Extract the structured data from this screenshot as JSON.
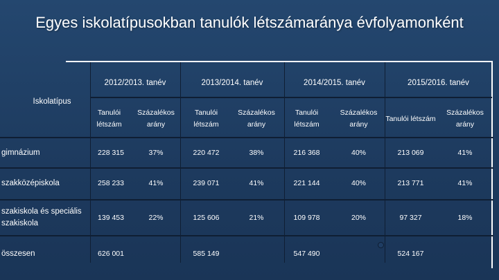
{
  "title": "Egyes iskolatípusokban tanulók létszámaránya évfolyamonként",
  "row_header": "Iskolatípus",
  "years": [
    "2012/2013. tanév",
    "2013/2014. tanév",
    "2014/2015. tanév",
    "2015/2016. tanév"
  ],
  "subheaders": {
    "count": "Tanulói létszám",
    "percent": "Százalékos arány"
  },
  "rows": [
    {
      "label": "gimnázium",
      "values": [
        "228 315",
        "37%",
        "220 472",
        "38%",
        "216 368",
        "40%",
        "213 069",
        "41%"
      ]
    },
    {
      "label": "szakközépiskola",
      "values": [
        "258 233",
        "41%",
        "239 071",
        "41%",
        "221 144",
        "40%",
        "213 771",
        "41%"
      ]
    },
    {
      "label": "szakiskola és speciális szakiskola",
      "values": [
        "139 453",
        "22%",
        "125 606",
        "21%",
        "109 978",
        "20%",
        "97 327",
        "18%"
      ]
    },
    {
      "label": "összesen",
      "values": [
        "626 001",
        "",
        "585 149",
        "",
        "547 490",
        "",
        "524 167",
        ""
      ]
    }
  ]
}
